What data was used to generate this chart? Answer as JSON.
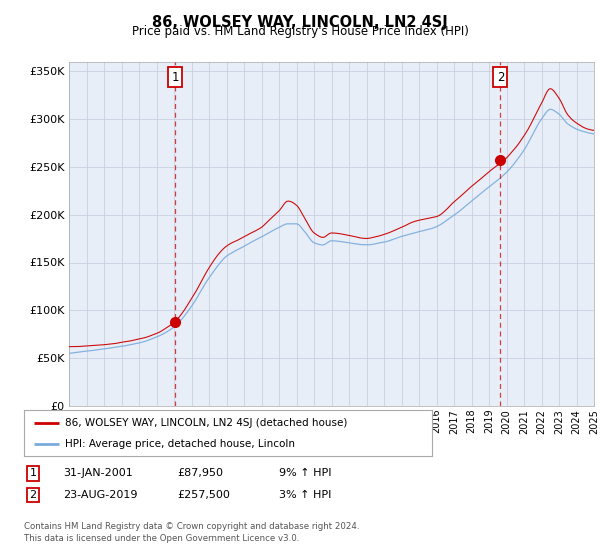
{
  "title": "86, WOLSEY WAY, LINCOLN, LN2 4SJ",
  "subtitle": "Price paid vs. HM Land Registry's House Price Index (HPI)",
  "x_start_year": 1995,
  "x_end_year": 2025,
  "ylim": [
    0,
    360000
  ],
  "yticks": [
    0,
    50000,
    100000,
    150000,
    200000,
    250000,
    300000,
    350000
  ],
  "ytick_labels": [
    "£0",
    "£50K",
    "£100K",
    "£150K",
    "£200K",
    "£250K",
    "£300K",
    "£350K"
  ],
  "marker1": {
    "year": 2001.08,
    "value": 87950,
    "label": "1"
  },
  "marker2": {
    "year": 2019.65,
    "value": 257500,
    "label": "2"
  },
  "legend_line1": "86, WOLSEY WAY, LINCOLN, LN2 4SJ (detached house)",
  "legend_line2": "HPI: Average price, detached house, Lincoln",
  "table_row1": [
    "1",
    "31-JAN-2001",
    "£87,950",
    "9% ↑ HPI"
  ],
  "table_row2": [
    "2",
    "23-AUG-2019",
    "£257,500",
    "3% ↑ HPI"
  ],
  "footer": "Contains HM Land Registry data © Crown copyright and database right 2024.\nThis data is licensed under the Open Government Licence v3.0.",
  "line_color_red": "#cc0000",
  "line_color_blue": "#7aabdc",
  "bg_color": "#e8eef8",
  "grid_color": "#c8cfe0",
  "marker_box_color": "#cc0000",
  "hpi_keypoints": [
    [
      1995.0,
      55000
    ],
    [
      1996.0,
      57000
    ],
    [
      1997.0,
      60000
    ],
    [
      1998.0,
      63000
    ],
    [
      1999.0,
      67000
    ],
    [
      2000.0,
      73000
    ],
    [
      2001.0,
      83000
    ],
    [
      2002.0,
      105000
    ],
    [
      2003.0,
      135000
    ],
    [
      2004.0,
      158000
    ],
    [
      2005.0,
      168000
    ],
    [
      2006.0,
      178000
    ],
    [
      2007.0,
      188000
    ],
    [
      2007.5,
      192000
    ],
    [
      2008.0,
      192000
    ],
    [
      2008.5,
      183000
    ],
    [
      2009.0,
      172000
    ],
    [
      2009.5,
      170000
    ],
    [
      2010.0,
      174000
    ],
    [
      2011.0,
      172000
    ],
    [
      2012.0,
      170000
    ],
    [
      2013.0,
      172000
    ],
    [
      2014.0,
      178000
    ],
    [
      2015.0,
      183000
    ],
    [
      2016.0,
      188000
    ],
    [
      2017.0,
      200000
    ],
    [
      2018.0,
      215000
    ],
    [
      2019.0,
      230000
    ],
    [
      2020.0,
      245000
    ],
    [
      2021.0,
      268000
    ],
    [
      2022.0,
      300000
    ],
    [
      2022.5,
      310000
    ],
    [
      2023.0,
      305000
    ],
    [
      2023.5,
      295000
    ],
    [
      2024.0,
      290000
    ],
    [
      2025.0,
      285000
    ]
  ],
  "price_keypoints": [
    [
      1995.0,
      62000
    ],
    [
      1996.0,
      63000
    ],
    [
      1997.0,
      65000
    ],
    [
      1998.0,
      68000
    ],
    [
      1999.0,
      72000
    ],
    [
      2000.0,
      78000
    ],
    [
      2001.0,
      88000
    ],
    [
      2002.0,
      112000
    ],
    [
      2003.0,
      145000
    ],
    [
      2004.0,
      168000
    ],
    [
      2005.0,
      178000
    ],
    [
      2006.0,
      188000
    ],
    [
      2007.0,
      205000
    ],
    [
      2007.5,
      215000
    ],
    [
      2008.0,
      210000
    ],
    [
      2008.5,
      195000
    ],
    [
      2009.0,
      180000
    ],
    [
      2009.5,
      175000
    ],
    [
      2010.0,
      180000
    ],
    [
      2011.0,
      178000
    ],
    [
      2012.0,
      176000
    ],
    [
      2013.0,
      180000
    ],
    [
      2014.0,
      188000
    ],
    [
      2015.0,
      195000
    ],
    [
      2016.0,
      200000
    ],
    [
      2017.0,
      215000
    ],
    [
      2018.0,
      232000
    ],
    [
      2019.0,
      248000
    ],
    [
      2020.0,
      262000
    ],
    [
      2021.0,
      285000
    ],
    [
      2022.0,
      320000
    ],
    [
      2022.5,
      335000
    ],
    [
      2023.0,
      325000
    ],
    [
      2023.5,
      308000
    ],
    [
      2024.0,
      300000
    ],
    [
      2025.0,
      292000
    ]
  ]
}
